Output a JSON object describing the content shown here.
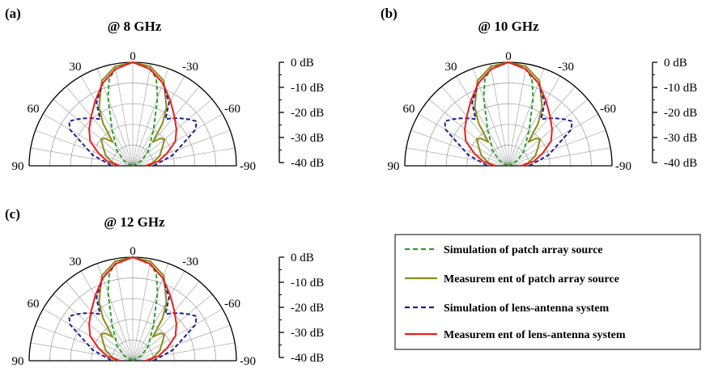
{
  "chart_data": [
    {
      "type": "line",
      "panel": "(a)",
      "title": "@ 8 GHz",
      "angle_labels": [
        "90",
        "60",
        "30",
        "0",
        "-30",
        "-60",
        "-90"
      ],
      "radial_axis": {
        "ticks": [
          "0 dB",
          "-10 dB",
          "-20 dB",
          "-30 dB",
          "-40 dB"
        ],
        "range": [
          -40,
          0
        ]
      },
      "angle_range": [
        -90,
        90
      ],
      "series": [
        {
          "key": "sim_patch",
          "angles": [
            -90,
            -75,
            -60,
            -45,
            -40,
            -30,
            -20,
            -15,
            -10,
            -5,
            0,
            5,
            10,
            15,
            20,
            30,
            40,
            45,
            60,
            75,
            90
          ],
          "values": [
            -40,
            -40,
            -36,
            -31,
            -30,
            -24,
            -12,
            -5,
            -2,
            -1,
            0,
            -1,
            -2,
            -5,
            -12,
            -24,
            -30,
            -31,
            -36,
            -40,
            -40
          ]
        },
        {
          "key": "meas_patch",
          "angles": [
            -90,
            -80,
            -70,
            -60,
            -50,
            -45,
            -40,
            -35,
            -30,
            -20,
            -10,
            0,
            10,
            20,
            30,
            35,
            40,
            45,
            50,
            60,
            70,
            80,
            90
          ],
          "values": [
            -33,
            -32,
            -29,
            -27,
            -24,
            -25,
            -28,
            -20,
            -14,
            -5,
            -1,
            0,
            -1,
            -5,
            -14,
            -20,
            -28,
            -25,
            -24,
            -27,
            -29,
            -32,
            -33
          ]
        },
        {
          "key": "sim_lens",
          "angles": [
            -90,
            -75,
            -60,
            -55,
            -50,
            -45,
            -40,
            -35,
            -30,
            -20,
            -10,
            0,
            10,
            20,
            30,
            35,
            40,
            45,
            50,
            55,
            60,
            75,
            90
          ],
          "values": [
            -32,
            -24,
            -12,
            -10,
            -12,
            -14,
            -16,
            -18,
            -12,
            -6,
            -2,
            0,
            -2,
            -6,
            -12,
            -18,
            -16,
            -14,
            -12,
            -10,
            -12,
            -24,
            -32
          ]
        },
        {
          "key": "meas_lens",
          "angles": [
            -90,
            -80,
            -70,
            -60,
            -50,
            -40,
            -30,
            -20,
            -10,
            0,
            10,
            20,
            30,
            40,
            50,
            60,
            70,
            80,
            90
          ],
          "values": [
            -35,
            -30,
            -26,
            -21,
            -18,
            -15,
            -11,
            -6,
            -2,
            0,
            -2,
            -6,
            -11,
            -15,
            -18,
            -21,
            -26,
            -30,
            -35
          ]
        }
      ]
    },
    {
      "type": "line",
      "panel": "(b)",
      "title": "@ 10 GHz",
      "angle_labels": [
        "90",
        "60",
        "30",
        "0",
        "-30",
        "-60",
        "-90"
      ],
      "radial_axis": {
        "ticks": [
          "0 dB",
          "-10 dB",
          "-20 dB",
          "-30 dB",
          "-40 dB"
        ],
        "range": [
          -40,
          0
        ]
      },
      "angle_range": [
        -90,
        90
      ],
      "series": [
        {
          "key": "sim_patch",
          "angles": [
            -90,
            -75,
            -60,
            -45,
            -40,
            -30,
            -20,
            -15,
            -10,
            -5,
            0,
            5,
            10,
            15,
            20,
            30,
            40,
            45,
            60,
            75,
            90
          ],
          "values": [
            -40,
            -40,
            -36,
            -31,
            -30,
            -24,
            -12,
            -5,
            -2,
            -1,
            0,
            -1,
            -2,
            -5,
            -12,
            -24,
            -30,
            -31,
            -36,
            -40,
            -40
          ]
        },
        {
          "key": "meas_patch",
          "angles": [
            -90,
            -80,
            -70,
            -60,
            -50,
            -45,
            -40,
            -35,
            -30,
            -20,
            -10,
            0,
            10,
            20,
            30,
            35,
            40,
            45,
            50,
            60,
            70,
            80,
            90
          ],
          "values": [
            -33,
            -32,
            -29,
            -27,
            -24,
            -25,
            -28,
            -20,
            -14,
            -5,
            -1,
            0,
            -1,
            -5,
            -14,
            -20,
            -28,
            -25,
            -24,
            -27,
            -29,
            -32,
            -33
          ]
        },
        {
          "key": "sim_lens",
          "angles": [
            -90,
            -75,
            -60,
            -55,
            -50,
            -45,
            -40,
            -35,
            -30,
            -20,
            -10,
            0,
            10,
            20,
            30,
            35,
            40,
            45,
            50,
            55,
            60,
            75,
            90
          ],
          "values": [
            -32,
            -24,
            -12,
            -10,
            -12,
            -14,
            -16,
            -18,
            -12,
            -6,
            -2,
            0,
            -2,
            -6,
            -12,
            -18,
            -16,
            -14,
            -12,
            -10,
            -12,
            -24,
            -32
          ]
        },
        {
          "key": "meas_lens",
          "angles": [
            -90,
            -80,
            -70,
            -60,
            -50,
            -40,
            -30,
            -20,
            -10,
            0,
            10,
            20,
            30,
            40,
            50,
            60,
            70,
            80,
            90
          ],
          "values": [
            -35,
            -30,
            -26,
            -21,
            -18,
            -15,
            -11,
            -6,
            -2,
            0,
            -2,
            -6,
            -11,
            -15,
            -18,
            -21,
            -26,
            -30,
            -35
          ]
        }
      ]
    },
    {
      "type": "line",
      "panel": "(c)",
      "title": "@ 12 GHz",
      "angle_labels": [
        "90",
        "60",
        "30",
        "0",
        "-30",
        "-60",
        "-90"
      ],
      "radial_axis": {
        "ticks": [
          "0 dB",
          "-10 dB",
          "-20 dB",
          "-30 dB",
          "-40 dB"
        ],
        "range": [
          -40,
          0
        ]
      },
      "angle_range": [
        -90,
        90
      ],
      "series": [
        {
          "key": "sim_patch",
          "angles": [
            -90,
            -75,
            -60,
            -45,
            -40,
            -30,
            -20,
            -15,
            -10,
            -5,
            0,
            5,
            10,
            15,
            20,
            30,
            40,
            45,
            60,
            75,
            90
          ],
          "values": [
            -40,
            -40,
            -36,
            -31,
            -30,
            -24,
            -12,
            -5,
            -2,
            -1,
            0,
            -1,
            -2,
            -5,
            -12,
            -24,
            -30,
            -31,
            -36,
            -40,
            -40
          ]
        },
        {
          "key": "meas_patch",
          "angles": [
            -90,
            -80,
            -70,
            -60,
            -50,
            -45,
            -40,
            -35,
            -30,
            -20,
            -10,
            0,
            10,
            20,
            30,
            35,
            40,
            45,
            50,
            60,
            70,
            80,
            90
          ],
          "values": [
            -33,
            -32,
            -29,
            -27,
            -24,
            -25,
            -28,
            -20,
            -14,
            -5,
            -1,
            0,
            -1,
            -5,
            -14,
            -20,
            -28,
            -25,
            -24,
            -27,
            -29,
            -32,
            -33
          ]
        },
        {
          "key": "sim_lens",
          "angles": [
            -90,
            -75,
            -60,
            -55,
            -50,
            -45,
            -40,
            -35,
            -30,
            -20,
            -10,
            0,
            10,
            20,
            30,
            35,
            40,
            45,
            50,
            55,
            60,
            75,
            90
          ],
          "values": [
            -32,
            -24,
            -12,
            -10,
            -12,
            -14,
            -16,
            -18,
            -12,
            -6,
            -2,
            0,
            -2,
            -6,
            -12,
            -18,
            -16,
            -14,
            -12,
            -10,
            -12,
            -24,
            -32
          ]
        },
        {
          "key": "meas_lens",
          "angles": [
            -90,
            -80,
            -70,
            -60,
            -50,
            -40,
            -30,
            -20,
            -10,
            0,
            10,
            20,
            30,
            40,
            50,
            60,
            70,
            80,
            90
          ],
          "values": [
            -35,
            -30,
            -26,
            -21,
            -18,
            -15,
            -11,
            -6,
            -2,
            0,
            -2,
            -6,
            -11,
            -15,
            -18,
            -21,
            -26,
            -30,
            -35
          ]
        }
      ]
    }
  ],
  "legend": {
    "entries": [
      {
        "key": "sim_patch",
        "label": "Simulation of patch array source",
        "color": "#2aa02a",
        "dash": "dashed"
      },
      {
        "key": "meas_patch",
        "label": "Measurem ent of patch array source",
        "color": "#8b8b1a",
        "dash": "solid"
      },
      {
        "key": "sim_lens",
        "label": "Simulation of lens-antenna system",
        "color": "#1f1f8f",
        "dash": "dashed"
      },
      {
        "key": "meas_lens",
        "label": "Measurem ent of lens-antenna system",
        "color": "#ee1c1c",
        "dash": "solid"
      }
    ]
  },
  "colors": {
    "grid": "#9a9a9a",
    "axis": "#000000"
  }
}
